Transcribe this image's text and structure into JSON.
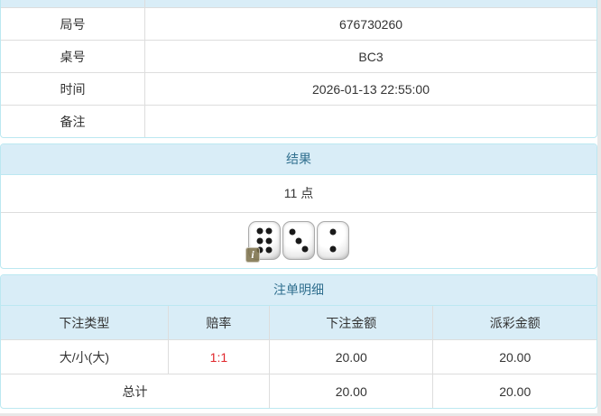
{
  "info_table": {
    "rows": [
      {
        "label": "局号",
        "value": "676730260"
      },
      {
        "label": "桌号",
        "value": "BC3"
      },
      {
        "label": "时间",
        "value": "2026-01-13 22:55:00"
      },
      {
        "label": "备注",
        "value": ""
      }
    ]
  },
  "result_panel": {
    "title": "结果",
    "points": "11 点",
    "dice": [
      6,
      3,
      2
    ],
    "info_icon_label": "i"
  },
  "bets_panel": {
    "title": "注单明细",
    "columns": [
      "下注类型",
      "赔率",
      "下注金额",
      "派彩金额"
    ],
    "rows": [
      {
        "bet_type": "大/小(大)",
        "odds": "1:1",
        "bet_amount": "20.00",
        "payout_amount": "20.00"
      }
    ],
    "total": {
      "label": "总计",
      "bet_amount": "20.00",
      "payout_amount": "20.00"
    }
  },
  "colors": {
    "heading_bg": "#d9edf7",
    "heading_text": "#31708f",
    "panel_border": "#bce8f1",
    "row_divider": "#dddddd",
    "odds_red": "#e0262b",
    "body_text": "#333333"
  }
}
